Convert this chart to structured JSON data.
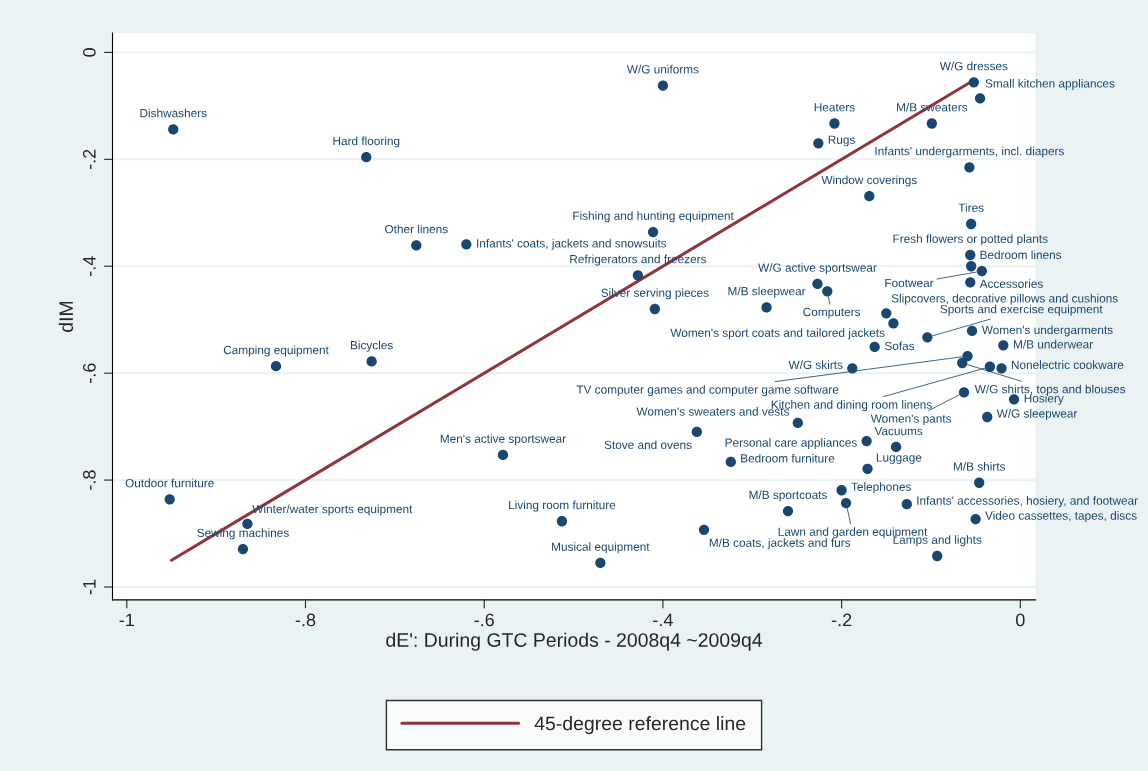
{
  "chart_data": {
    "type": "scatter",
    "xlabel": "dE': During GTC Periods - 2008q4 ~2009q4",
    "ylabel": "dIM",
    "xlim": [
      -1.016,
      0.017
    ],
    "ylim": [
      -1.024,
      0.036
    ],
    "xticks": [
      -1,
      {
        "value": -0.8,
        "label": "-.8"
      },
      {
        "value": -0.6,
        "label": "-.6"
      },
      {
        "value": -0.4,
        "label": "-.4"
      },
      {
        "value": -0.2,
        "label": "-.2"
      },
      0
    ],
    "yticks": [
      -1,
      {
        "value": -0.8,
        "label": "-.8"
      },
      {
        "value": -0.6,
        "label": "-.6"
      },
      {
        "value": -0.4,
        "label": "-.4"
      },
      {
        "value": -0.2,
        "label": "-.2"
      },
      0
    ],
    "grid": "y",
    "legend": "bottom",
    "series": [
      {
        "type": "scatter",
        "color": "#1a476f",
        "marker": "circle",
        "x": [
          -0.948,
          -0.732,
          -0.4,
          -0.676,
          -0.62,
          -0.411,
          -0.428,
          -0.409,
          -0.227,
          -0.216,
          -0.284,
          -0.15,
          -0.142,
          -0.104,
          -0.054,
          -0.019,
          -0.163,
          -0.059,
          -0.188,
          -0.065,
          -0.034,
          -0.021,
          -0.063,
          -0.007,
          -0.037,
          -0.055,
          -0.056,
          -0.055,
          -0.043,
          -0.056,
          -0.052,
          -0.045,
          -0.099,
          -0.208,
          -0.226,
          -0.057,
          -0.169,
          -0.362,
          -0.249,
          -0.172,
          -0.139,
          -0.324,
          -0.171,
          -0.046,
          -0.2,
          -0.195,
          -0.127,
          -0.05,
          -0.26,
          -0.354,
          -0.093,
          -0.833,
          -0.726,
          -0.579,
          -0.952,
          -0.865,
          -0.87,
          -0.513,
          -0.47
        ],
        "values": [
          -0.144,
          -0.196,
          -0.062,
          -0.361,
          -0.359,
          -0.336,
          -0.417,
          -0.48,
          -0.433,
          -0.447,
          -0.477,
          -0.488,
          -0.507,
          -0.533,
          -0.521,
          -0.548,
          -0.551,
          -0.568,
          -0.591,
          -0.581,
          -0.588,
          -0.591,
          -0.636,
          -0.649,
          -0.682,
          -0.321,
          -0.379,
          -0.4,
          -0.409,
          -0.43,
          -0.056,
          -0.086,
          -0.133,
          -0.133,
          -0.17,
          -0.215,
          -0.269,
          -0.71,
          -0.693,
          -0.727,
          -0.738,
          -0.766,
          -0.779,
          -0.805,
          -0.819,
          -0.843,
          -0.845,
          -0.873,
          -0.858,
          -0.893,
          -0.942,
          -0.587,
          -0.578,
          -0.753,
          -0.836,
          -0.882,
          -0.929,
          -0.877,
          -0.955
        ]
      },
      {
        "type": "line",
        "name": "45-degree reference line",
        "color": "#90353b",
        "marker": "none",
        "line_style": "solid",
        "x": [
          -0.95,
          -0.055
        ],
        "values": [
          -0.95,
          -0.055
        ]
      }
    ],
    "annotations": [
      {
        "text": "Dishwashers",
        "x": -0.948,
        "y": -0.144
      },
      {
        "text": "Hard flooring",
        "x": -0.732,
        "y": -0.196
      },
      {
        "text": "W/G uniforms",
        "x": -0.4,
        "y": -0.062
      },
      {
        "text": "Other linens",
        "x": -0.676,
        "y": -0.361
      },
      {
        "text": "Infants' coats, jackets and snowsuits",
        "x": -0.62,
        "y": -0.359
      },
      {
        "text": "Fishing and hunting equipment",
        "x": -0.411,
        "y": -0.336
      },
      {
        "text": "Refrigerators and freezers",
        "x": -0.428,
        "y": -0.417
      },
      {
        "text": "Silver serving pieces",
        "x": -0.409,
        "y": -0.48
      },
      {
        "text": "W/G active sportswear",
        "x": -0.227,
        "y": -0.433
      },
      {
        "text": "Computers",
        "x": -0.216,
        "y": -0.447
      },
      {
        "text": "M/B sleepwear",
        "x": -0.284,
        "y": -0.477
      },
      {
        "text": "Slipcovers, decorative pillows and cushions",
        "x": -0.15,
        "y": -0.488
      },
      {
        "text": "Women's sport coats and tailored jackets",
        "x": -0.142,
        "y": -0.507
      },
      {
        "text": "Sports and exercise equipment",
        "x": -0.104,
        "y": -0.533
      },
      {
        "text": "Women's undergarments",
        "x": -0.054,
        "y": -0.521
      },
      {
        "text": "M/B underwear",
        "x": -0.019,
        "y": -0.548
      },
      {
        "text": "Sofas",
        "x": -0.163,
        "y": -0.551
      },
      {
        "text": "TV computer games and computer game software",
        "x": -0.059,
        "y": -0.568
      },
      {
        "text": "W/G skirts",
        "x": -0.188,
        "y": -0.591
      },
      {
        "text": "W/G shirts, tops and blouses",
        "x": -0.065,
        "y": -0.581
      },
      {
        "text": "Kitchen and dining room linens",
        "x": -0.034,
        "y": -0.588
      },
      {
        "text": "Nonelectric cookware",
        "x": -0.021,
        "y": -0.591
      },
      {
        "text": "Women's pants",
        "x": -0.063,
        "y": -0.636
      },
      {
        "text": "Hosiery",
        "x": -0.007,
        "y": -0.649
      },
      {
        "text": "W/G sleepwear",
        "x": -0.037,
        "y": -0.682
      },
      {
        "text": "Tires",
        "x": -0.055,
        "y": -0.321
      },
      {
        "text": "Fresh flowers or potted plants",
        "x": -0.056,
        "y": -0.379
      },
      {
        "text": "Bedroom linens",
        "x": -0.055,
        "y": -0.4
      },
      {
        "text": "Footwear",
        "x": -0.043,
        "y": -0.409
      },
      {
        "text": "Accessories",
        "x": -0.056,
        "y": -0.43
      },
      {
        "text": "W/G dresses",
        "x": -0.052,
        "y": -0.056
      },
      {
        "text": "Small kitchen appliances",
        "x": -0.045,
        "y": -0.086
      },
      {
        "text": "M/B sweaters",
        "x": -0.099,
        "y": -0.133
      },
      {
        "text": "Heaters",
        "x": -0.208,
        "y": -0.133
      },
      {
        "text": "Rugs",
        "x": -0.226,
        "y": -0.17
      },
      {
        "text": "Infants' undergarments, incl. diapers",
        "x": -0.057,
        "y": -0.215
      },
      {
        "text": "Window coverings",
        "x": -0.169,
        "y": -0.269
      },
      {
        "text": "Stove and ovens",
        "x": -0.362,
        "y": -0.71
      },
      {
        "text": "Women's sweaters and vests",
        "x": -0.249,
        "y": -0.693
      },
      {
        "text": "Personal care appliances",
        "x": -0.172,
        "y": -0.727
      },
      {
        "text": "Vacuums",
        "x": -0.139,
        "y": -0.738
      },
      {
        "text": "Bedroom furniture",
        "x": -0.324,
        "y": -0.766
      },
      {
        "text": "Luggage",
        "x": -0.171,
        "y": -0.779
      },
      {
        "text": "M/B shirts",
        "x": -0.046,
        "y": -0.805
      },
      {
        "text": "Telephones",
        "x": -0.2,
        "y": -0.819
      },
      {
        "text": "Lawn and garden equipment",
        "x": -0.195,
        "y": -0.843
      },
      {
        "text": "Infants' accessories, hosiery, and footwear",
        "x": -0.127,
        "y": -0.845
      },
      {
        "text": "Video cassettes, tapes, discs",
        "x": -0.05,
        "y": -0.873
      },
      {
        "text": "M/B sportcoats",
        "x": -0.26,
        "y": -0.858
      },
      {
        "text": "M/B coats, jackets and furs",
        "x": -0.354,
        "y": -0.893
      },
      {
        "text": "Lamps and lights",
        "x": -0.093,
        "y": -0.942
      },
      {
        "text": "Camping equipment",
        "x": -0.833,
        "y": -0.587
      },
      {
        "text": "Bicycles",
        "x": -0.726,
        "y": -0.578
      },
      {
        "text": "Men's active sportswear",
        "x": -0.579,
        "y": -0.753
      },
      {
        "text": "Outdoor furniture",
        "x": -0.952,
        "y": -0.836
      },
      {
        "text": "Winter/water sports equipment",
        "x": -0.865,
        "y": -0.882
      },
      {
        "text": "Sewing machines",
        "x": -0.87,
        "y": -0.929
      },
      {
        "text": "Living room furniture",
        "x": -0.513,
        "y": -0.877
      },
      {
        "text": "Musical equipment",
        "x": -0.47,
        "y": -0.955
      }
    ]
  }
}
